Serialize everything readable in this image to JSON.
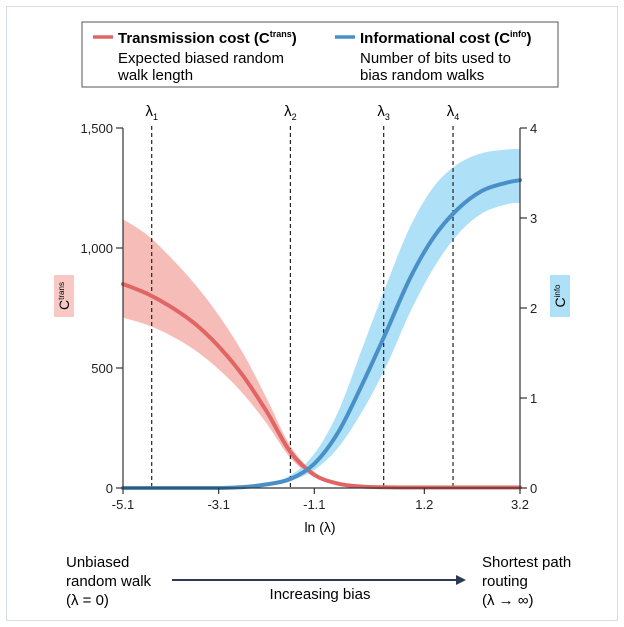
{
  "chart_data": {
    "type": "line",
    "legend": [
      {
        "name": "Transmission cost",
        "symbol": "C",
        "superscript": "trans",
        "description_line1": "Expected biased random",
        "description_line2": "walk length",
        "color": "#e06666"
      },
      {
        "name": "Informational cost",
        "symbol": "C",
        "superscript": "info",
        "description_line1": "Number of bits used to",
        "description_line2": "bias random walks",
        "color": "#4a90c8"
      }
    ],
    "legend_placement": "top-center",
    "x_axis": {
      "label": "ln (λ)",
      "range": [
        -5.1,
        3.2
      ],
      "ticks": [
        "-5.1",
        "-3.1",
        "-1.1",
        "1.2",
        "3.2"
      ],
      "tick_values": [
        -5.1,
        -3.1,
        -1.1,
        1.2,
        3.2
      ]
    },
    "y_left": {
      "label": "C",
      "superscript": "trans",
      "range": [
        0,
        1500
      ],
      "ticks": [
        "0",
        "500",
        "1,000",
        "1,500"
      ],
      "tick_values": [
        0,
        500,
        1000,
        1500
      ],
      "label_bg": "#f8c8c4"
    },
    "y_right": {
      "label": "C",
      "superscript": "info",
      "range": [
        0,
        4
      ],
      "ticks": [
        "0",
        "1",
        "2",
        "3",
        "4"
      ],
      "tick_values": [
        0,
        1,
        2,
        3,
        4
      ],
      "label_bg": "#aee0f7"
    },
    "vlines": [
      {
        "name": "λ",
        "sub": "1",
        "x": -4.5
      },
      {
        "name": "λ",
        "sub": "2",
        "x": -1.6
      },
      {
        "name": "λ",
        "sub": "3",
        "x": 0.35
      },
      {
        "name": "λ",
        "sub": "4",
        "x": 1.8
      }
    ],
    "series": [
      {
        "name": "Transmission cost",
        "axis": "left",
        "color": "#e06666",
        "band_color": "#f6bdb8",
        "x": [
          -5.1,
          -4.6,
          -4.1,
          -3.6,
          -3.1,
          -2.6,
          -2.1,
          -1.6,
          -1.1,
          -0.6,
          -0.1,
          0.4,
          0.9,
          1.4,
          1.9,
          2.4,
          2.9,
          3.2
        ],
        "y": [
          850,
          810,
          755,
          685,
          590,
          470,
          320,
          150,
          55,
          18,
          6,
          3,
          2,
          2,
          2,
          2,
          2,
          2
        ],
        "lower": [
          710,
          680,
          635,
          575,
          495,
          395,
          270,
          125,
          45,
          14,
          4,
          2,
          1,
          1,
          1,
          1,
          1,
          1
        ],
        "upper": [
          1120,
          1055,
          960,
          850,
          720,
          565,
          375,
          175,
          65,
          22,
          8,
          4,
          3,
          3,
          3,
          3,
          3,
          3
        ]
      },
      {
        "name": "Informational cost",
        "axis": "right",
        "color": "#4a90c8",
        "band_color": "#aee0f7",
        "x": [
          -5.1,
          -4.6,
          -4.1,
          -3.6,
          -3.1,
          -2.6,
          -2.1,
          -1.6,
          -1.1,
          -0.6,
          -0.1,
          0.4,
          0.9,
          1.4,
          1.9,
          2.4,
          2.9,
          3.2
        ],
        "y": [
          0,
          0,
          0,
          0,
          0,
          0.01,
          0.04,
          0.1,
          0.27,
          0.62,
          1.15,
          1.73,
          2.33,
          2.79,
          3.1,
          3.3,
          3.39,
          3.42
        ],
        "lower": [
          0,
          0,
          0,
          0,
          0,
          0.01,
          0.03,
          0.08,
          0.2,
          0.45,
          0.85,
          1.35,
          1.95,
          2.45,
          2.82,
          3.05,
          3.15,
          3.17
        ],
        "upper": [
          0,
          0,
          0,
          0,
          0,
          0.02,
          0.05,
          0.14,
          0.38,
          0.85,
          1.55,
          2.25,
          2.9,
          3.35,
          3.6,
          3.72,
          3.76,
          3.77
        ]
      }
    ]
  },
  "footer": {
    "left_line1": "Unbiased",
    "left_line2": "random walk",
    "left_line3": "(λ = 0)",
    "center": "Increasing bias",
    "right_line1": "Shortest path",
    "right_line2": "routing",
    "right_line3": "(λ → ∞)",
    "arrow_color": "#2b3a55"
  }
}
